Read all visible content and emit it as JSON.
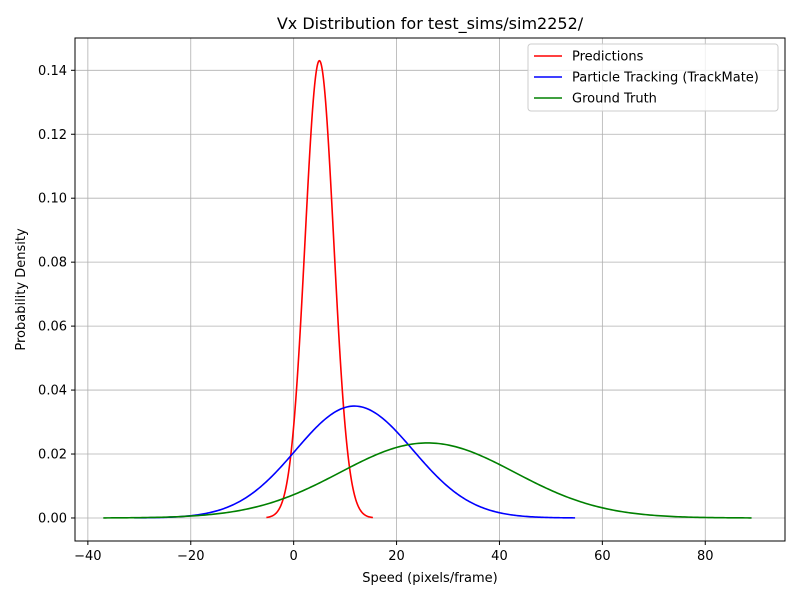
{
  "chart_data": {
    "type": "line",
    "title": "Vx Distribution for test_sims/sim2252/",
    "xlabel": "Speed (pixels/frame)",
    "ylabel": "Probability Density",
    "xlim": [
      -42.5,
      95.5
    ],
    "ylim": [
      -0.0072,
      0.1501
    ],
    "grid": true,
    "legend_position": "top-right",
    "xticks": [
      -40,
      -20,
      0,
      20,
      40,
      60,
      80
    ],
    "xtick_labels": [
      "−40",
      "−20",
      "0",
      "20",
      "40",
      "60",
      "80"
    ],
    "yticks": [
      0.0,
      0.02,
      0.04,
      0.06,
      0.08,
      0.1,
      0.12,
      0.14
    ],
    "ytick_labels": [
      "0.00",
      "0.02",
      "0.04",
      "0.06",
      "0.08",
      "0.10",
      "0.12",
      "0.14"
    ],
    "series": [
      {
        "name": "Predictions",
        "color": "#ff0000",
        "mean": 5.0,
        "std": 2.79,
        "x_range": [
          -5.3,
          15.4
        ]
      },
      {
        "name": "Particle Tracking (TrackMate)",
        "color": "#0000ff",
        "mean": 11.8,
        "std": 11.4,
        "x_range": [
          -31.0,
          54.7
        ]
      },
      {
        "name": "Ground Truth",
        "color": "#008000",
        "mean": 26.0,
        "std": 17.0,
        "x_range": [
          -37.0,
          89.0
        ]
      }
    ]
  }
}
